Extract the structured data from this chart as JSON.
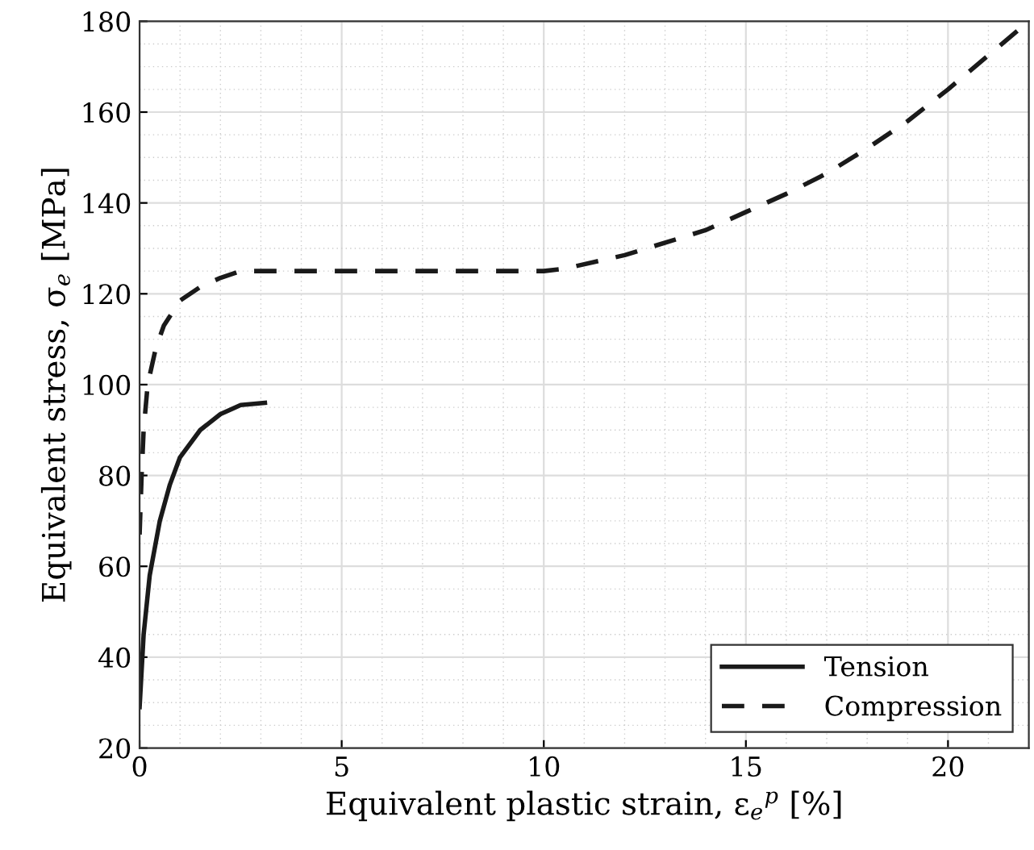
{
  "chart_data": {
    "type": "line",
    "xlabel": "Equivalent plastic strain, ε$_{e}$$^{p}$ [%]",
    "ylabel": "Equivalent stress, σ$_{e}$ [MPa]",
    "xlim": [
      0,
      22
    ],
    "xticks": [
      0,
      5,
      10,
      15,
      20
    ],
    "ylim": [
      20,
      180
    ],
    "yticks": [
      20,
      40,
      60,
      80,
      100,
      120,
      140,
      160,
      180
    ],
    "grid": true,
    "legend": "bottom right",
    "marker": "none",
    "series": [
      {
        "name": "Tension",
        "color": "#1a1a1a",
        "line_style": "solid",
        "x": [
          0,
          0.1,
          0.25,
          0.5,
          0.75,
          1.0,
          1.5,
          2.0,
          2.5,
          3.1
        ],
        "values": [
          29,
          45,
          58,
          70,
          78,
          84,
          90,
          93.5,
          95.5,
          96
        ]
      },
      {
        "name": "Compression",
        "color": "#1a1a1a",
        "line_style": "dashed",
        "x": [
          0,
          0.05,
          0.1,
          0.2,
          0.4,
          0.6,
          1.0,
          1.5,
          2.0,
          2.5,
          10,
          10.5,
          12,
          14,
          15,
          16,
          17,
          18,
          19,
          20,
          21,
          22
        ],
        "values": [
          67,
          80,
          90,
          100,
          108,
          113,
          118.5,
          121.5,
          123.5,
          125,
          125,
          125.5,
          128.5,
          134,
          138,
          142,
          146.5,
          152,
          158,
          165,
          172.5,
          180
        ]
      }
    ]
  }
}
